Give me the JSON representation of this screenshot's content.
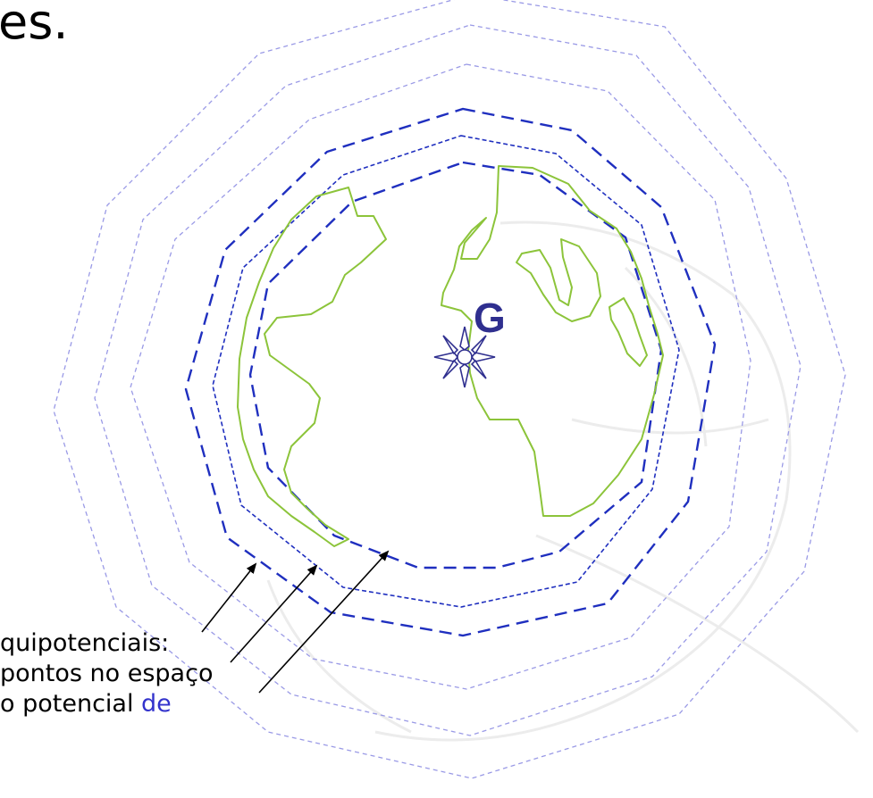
{
  "slide": {
    "title_fragment": "es.",
    "center_label": "G",
    "caption_lines": [
      {
        "text": "quipotenciais:",
        "highlight": ""
      },
      {
        "text": "pontos no espaço",
        "highlight": ""
      },
      {
        "text": "o potencial ",
        "highlight": "de"
      }
    ]
  },
  "colors": {
    "equipotential_dark": "#1f2fbf",
    "equipotential_light": "#9a9ae6",
    "continents": "#8cc43a",
    "highlight_text": "#3333cc"
  },
  "icons": {
    "center_marker": "compass-star-icon"
  }
}
